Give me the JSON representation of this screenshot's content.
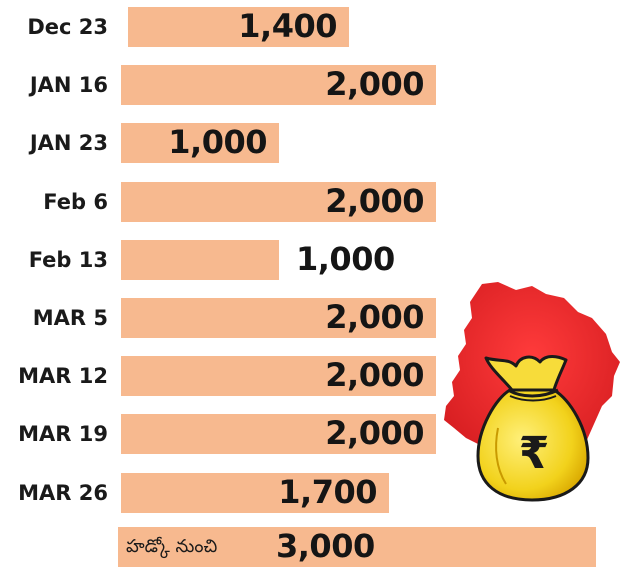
{
  "chart_data": {
    "type": "bar",
    "orientation": "horizontal",
    "categories": [
      "Dec 23",
      "JAN 16",
      "JAN 23",
      "Feb 6",
      "Feb 13",
      "MAR 5",
      "MAR 12",
      "MAR 19",
      "MAR 26"
    ],
    "values": [
      1400,
      2000,
      1000,
      2000,
      1000,
      2000,
      2000,
      2000,
      1700
    ],
    "value_labels": [
      "1,400",
      "2,000",
      "1,000",
      "2,000",
      "1,000",
      "2,000",
      "2,000",
      "2,000",
      "1,700"
    ],
    "extra_bar": {
      "label": "హడ్కో నుంచి",
      "value": 3000,
      "value_label": "3,000"
    },
    "title": "",
    "xlabel": "",
    "ylabel": "",
    "grid": false,
    "legend": false,
    "bar_color": "#f7b98f"
  },
  "illustration": {
    "icons": [
      "telangana-map-icon",
      "money-bag-icon",
      "rupee-icon"
    ],
    "currency_symbol": "₹",
    "colors": {
      "map": "#e8262a",
      "bag": "#f2d21c",
      "bag_outline": "#1a1a1a"
    }
  }
}
